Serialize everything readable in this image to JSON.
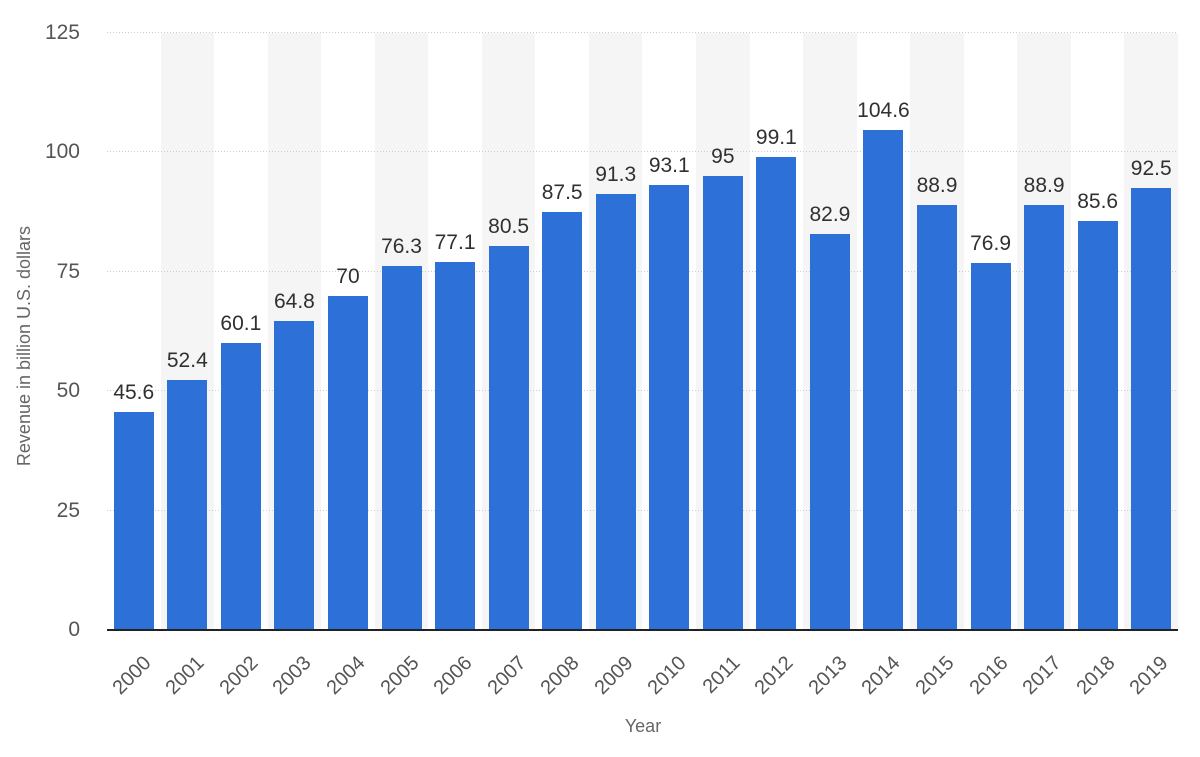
{
  "chart_data": {
    "type": "bar",
    "title": "",
    "categories": [
      "2000",
      "2001",
      "2002",
      "2003",
      "2004",
      "2005",
      "2006",
      "2007",
      "2008",
      "2009",
      "2010",
      "2011",
      "2012",
      "2013",
      "2014",
      "2015",
      "2016",
      "2017",
      "2018",
      "2019"
    ],
    "values": [
      45.6,
      52.4,
      60.1,
      64.8,
      70,
      76.3,
      77.1,
      80.5,
      87.5,
      91.3,
      93.1,
      95,
      99.1,
      82.9,
      104.6,
      88.9,
      76.9,
      88.9,
      85.6,
      92.5
    ],
    "value_labels": [
      "45.6",
      "52.4",
      "60.1",
      "64.8",
      "70",
      "76.3",
      "77.1",
      "80.5",
      "87.5",
      "91.3",
      "93.1",
      "95",
      "99.1",
      "82.9",
      "104.6",
      "88.9",
      "76.9",
      "88.9",
      "85.6",
      "92.5"
    ],
    "xlabel": "Year",
    "ylabel": "Revenue in billion U.S. dollars",
    "ylim": [
      0,
      125
    ],
    "yticks": [
      0,
      25,
      50,
      75,
      100,
      125
    ],
    "grid": "horizontal dotted",
    "legend": "none",
    "alternating_column_bands": "odd years shaded",
    "colors": {
      "bar": "#2d70d8",
      "band": "#f5f5f6",
      "gridline": "#cccccc",
      "axis_line": "#222222",
      "value_label": "#303030",
      "tick_label": "#555555",
      "axis_title": "#666666",
      "background": "#ffffff"
    }
  }
}
